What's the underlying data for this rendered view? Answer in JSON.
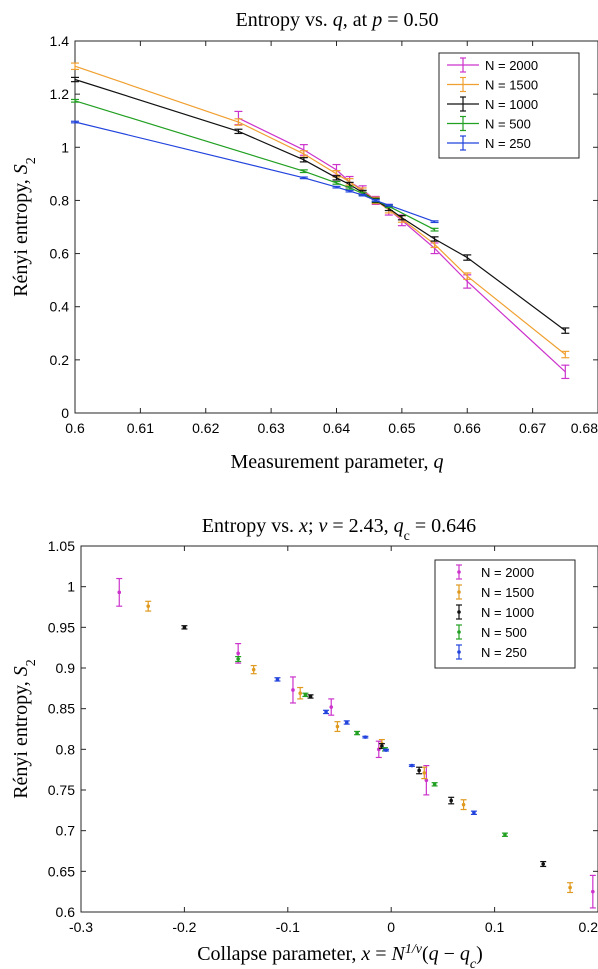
{
  "chart_data": [
    {
      "type": "line",
      "title_parts": [
        "Entropy vs. ",
        "q",
        ", at ",
        "p",
        " = 0.50"
      ],
      "xlabel_parts": [
        "Measurement parameter, ",
        "q"
      ],
      "ylabel_parts": [
        "Rényi entropy, ",
        "S",
        "2"
      ],
      "xlim": [
        0.6,
        0.68
      ],
      "ylim": [
        0,
        1.4
      ],
      "xticks": [
        "0.6",
        "0.61",
        "0.62",
        "0.63",
        "0.64",
        "0.65",
        "0.66",
        "0.67",
        "0.68"
      ],
      "yticks": [
        "0",
        "0.2",
        "0.4",
        "0.6",
        "0.8",
        "1",
        "1.2",
        "1.4"
      ],
      "legend_position": "top-right",
      "series": [
        {
          "name": "N = 2000",
          "color": "#cc33cc",
          "points": [
            [
              0.625,
              1.11,
              0.025
            ],
            [
              0.635,
              0.99,
              0.02
            ],
            [
              0.64,
              0.915,
              0.02
            ],
            [
              0.642,
              0.87,
              0.02
            ],
            [
              0.644,
              0.84,
              0.015
            ],
            [
              0.646,
              0.8,
              0.015
            ],
            [
              0.648,
              0.765,
              0.02
            ],
            [
              0.65,
              0.725,
              0.02
            ],
            [
              0.655,
              0.62,
              0.02
            ],
            [
              0.66,
              0.495,
              0.025
            ],
            [
              0.675,
              0.155,
              0.025
            ]
          ]
        },
        {
          "name": "N = 1500",
          "color": "#f0a030",
          "points": [
            [
              0.6,
              1.305,
              0.012
            ],
            [
              0.625,
              1.095,
              0.012
            ],
            [
              0.635,
              0.975,
              0.012
            ],
            [
              0.64,
              0.9,
              0.012
            ],
            [
              0.642,
              0.87,
              0.012
            ],
            [
              0.644,
              0.835,
              0.012
            ],
            [
              0.646,
              0.8,
              0.012
            ],
            [
              0.648,
              0.765,
              0.012
            ],
            [
              0.65,
              0.73,
              0.012
            ],
            [
              0.655,
              0.635,
              0.012
            ],
            [
              0.66,
              0.515,
              0.012
            ],
            [
              0.675,
              0.22,
              0.012
            ]
          ]
        },
        {
          "name": "N = 1000",
          "color": "#111111",
          "points": [
            [
              0.6,
              1.255,
              0.008
            ],
            [
              0.625,
              1.06,
              0.008
            ],
            [
              0.635,
              0.953,
              0.008
            ],
            [
              0.64,
              0.885,
              0.008
            ],
            [
              0.642,
              0.86,
              0.008
            ],
            [
              0.644,
              0.83,
              0.008
            ],
            [
              0.646,
              0.8,
              0.008
            ],
            [
              0.648,
              0.77,
              0.008
            ],
            [
              0.65,
              0.735,
              0.008
            ],
            [
              0.655,
              0.655,
              0.008
            ],
            [
              0.66,
              0.585,
              0.01
            ],
            [
              0.675,
              0.31,
              0.01
            ]
          ]
        },
        {
          "name": "N = 500",
          "color": "#22a022",
          "points": [
            [
              0.6,
              1.175,
              0.005
            ],
            [
              0.635,
              0.91,
              0.005
            ],
            [
              0.64,
              0.866,
              0.005
            ],
            [
              0.642,
              0.848,
              0.005
            ],
            [
              0.644,
              0.826,
              0.005
            ],
            [
              0.646,
              0.8,
              0.005
            ],
            [
              0.648,
              0.778,
              0.005
            ],
            [
              0.655,
              0.69,
              0.005
            ]
          ]
        },
        {
          "name": "N = 250",
          "color": "#2244dd",
          "points": [
            [
              0.6,
              1.095,
              0.003
            ],
            [
              0.635,
              0.885,
              0.003
            ],
            [
              0.64,
              0.85,
              0.003
            ],
            [
              0.642,
              0.835,
              0.003
            ],
            [
              0.644,
              0.82,
              0.003
            ],
            [
              0.646,
              0.8,
              0.003
            ],
            [
              0.648,
              0.782,
              0.003
            ],
            [
              0.655,
              0.72,
              0.003
            ]
          ]
        }
      ]
    },
    {
      "type": "scatter",
      "title_parts": [
        "Entropy vs. ",
        "x",
        "; ",
        "ν",
        " = 2.43, ",
        "q",
        "c",
        " = 0.646"
      ],
      "xlabel_parts": [
        "Collapse parameter, ",
        "x",
        " = ",
        "N",
        "1/ν",
        "(",
        "q",
        " − ",
        "q",
        "c",
        ")"
      ],
      "ylabel_parts": [
        "Rényi entropy, ",
        "S",
        "2"
      ],
      "xlim": [
        -0.3,
        0.2
      ],
      "ylim": [
        0.6,
        1.05
      ],
      "xticks": [
        "-0.3",
        "-0.2",
        "-0.1",
        "0",
        "0.1",
        "0.2"
      ],
      "yticks": [
        "0.6",
        "0.65",
        "0.7",
        "0.75",
        "0.8",
        "0.85",
        "0.9",
        "0.95",
        "1",
        "1.05"
      ],
      "legend_position": "top-right",
      "series": [
        {
          "name": "N = 2000",
          "color": "#cc33cc",
          "points": [
            [
              -0.263,
              0.993,
              0.017
            ],
            [
              -0.148,
              0.918,
              0.012
            ],
            [
              -0.095,
              0.873,
              0.016
            ],
            [
              -0.058,
              0.852,
              0.01
            ],
            [
              -0.012,
              0.8,
              0.01
            ],
            [
              0.034,
              0.762,
              0.018
            ],
            [
              0.195,
              0.625,
              0.02
            ]
          ]
        },
        {
          "name": "N = 1500",
          "color": "#e09a20",
          "points": [
            [
              -0.235,
              0.976,
              0.006
            ],
            [
              -0.133,
              0.898,
              0.005
            ],
            [
              -0.088,
              0.869,
              0.007
            ],
            [
              -0.052,
              0.828,
              0.006
            ],
            [
              -0.009,
              0.807,
              0.005
            ],
            [
              0.032,
              0.771,
              0.007
            ],
            [
              0.07,
              0.732,
              0.006
            ],
            [
              0.173,
              0.63,
              0.006
            ]
          ]
        },
        {
          "name": "N = 1000",
          "color": "#111111",
          "points": [
            [
              -0.2,
              0.95,
              0.002
            ],
            [
              -0.078,
              0.865,
              0.002
            ],
            [
              -0.009,
              0.804,
              0.003
            ],
            [
              0.027,
              0.774,
              0.004
            ],
            [
              0.058,
              0.737,
              0.004
            ],
            [
              0.147,
              0.659,
              0.003
            ]
          ]
        },
        {
          "name": "N = 500",
          "color": "#22a022",
          "points": [
            [
              -0.148,
              0.911,
              0.003
            ],
            [
              -0.083,
              0.867,
              0.002
            ],
            [
              -0.033,
              0.82,
              0.002
            ],
            [
              -0.006,
              0.8,
              0.002
            ],
            [
              0.042,
              0.757,
              0.002
            ],
            [
              0.11,
              0.695,
              0.002
            ]
          ]
        },
        {
          "name": "N = 250",
          "color": "#2244dd",
          "points": [
            [
              -0.11,
              0.886,
              0.002
            ],
            [
              -0.063,
              0.846,
              0.002
            ],
            [
              -0.043,
              0.833,
              0.002
            ],
            [
              -0.025,
              0.815,
              0.001
            ],
            [
              -0.005,
              0.799,
              0.001
            ],
            [
              0.02,
              0.78,
              0.001
            ],
            [
              0.08,
              0.722,
              0.002
            ]
          ]
        }
      ]
    }
  ]
}
